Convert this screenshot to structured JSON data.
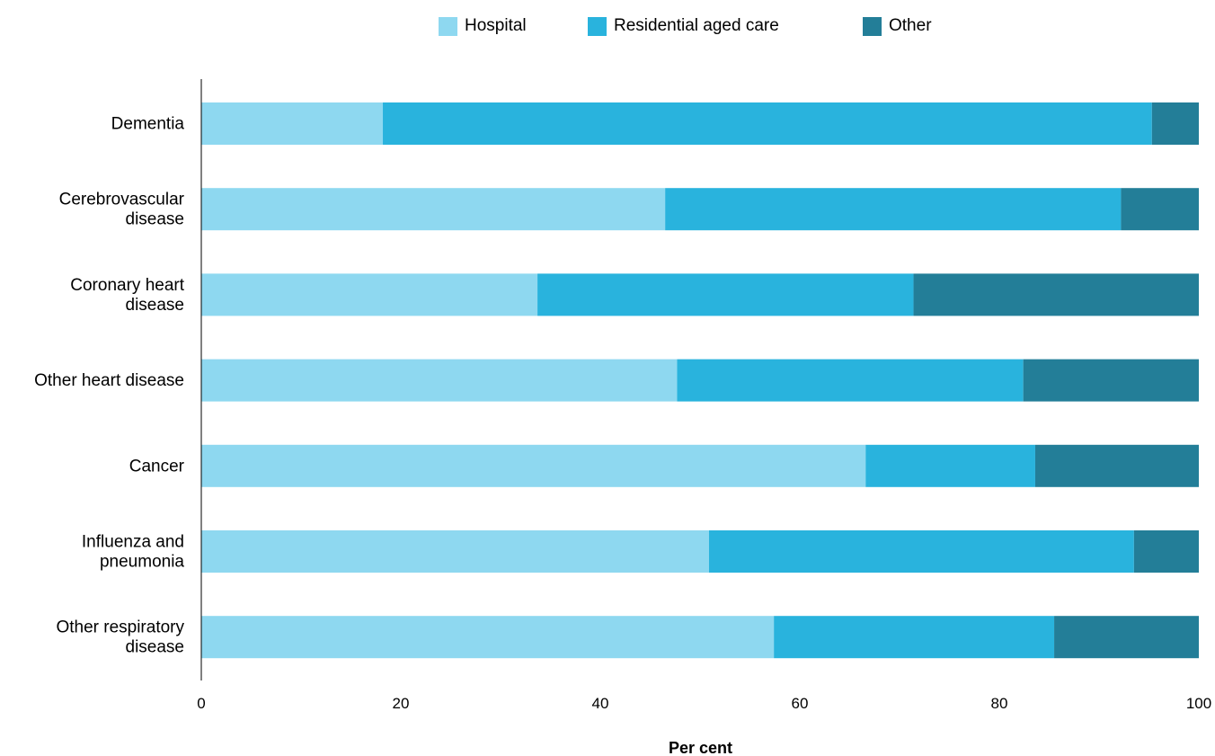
{
  "chart_data": {
    "type": "bar",
    "orientation": "horizontal",
    "stacked": true,
    "categories": [
      [
        "Dementia"
      ],
      [
        "Cerebrovascular",
        "disease"
      ],
      [
        "Coronary heart",
        "disease"
      ],
      [
        "Other heart disease"
      ],
      [
        "Cancer"
      ],
      [
        "Influenza and",
        "pneumonia"
      ],
      [
        "Other respiratory",
        "disease"
      ]
    ],
    "series": [
      {
        "name": "Hospital",
        "color": "#8ed8f0",
        "values": [
          18.2,
          46.5,
          33.7,
          47.7,
          66.6,
          50.9,
          57.4
        ]
      },
      {
        "name": "Residential aged care",
        "color": "#29b3dd",
        "values": [
          77.1,
          45.7,
          37.7,
          34.7,
          17.0,
          42.6,
          28.1
        ]
      },
      {
        "name": "Other",
        "color": "#237e98",
        "values": [
          4.7,
          7.8,
          28.6,
          17.6,
          16.4,
          6.5,
          14.5
        ]
      }
    ],
    "xlabel": "Per cent",
    "ylabel": "",
    "xlim": [
      0,
      100
    ],
    "xticks": [
      "0",
      "20",
      "40",
      "60",
      "80",
      "100"
    ],
    "grid": false,
    "legend_position": "top"
  }
}
